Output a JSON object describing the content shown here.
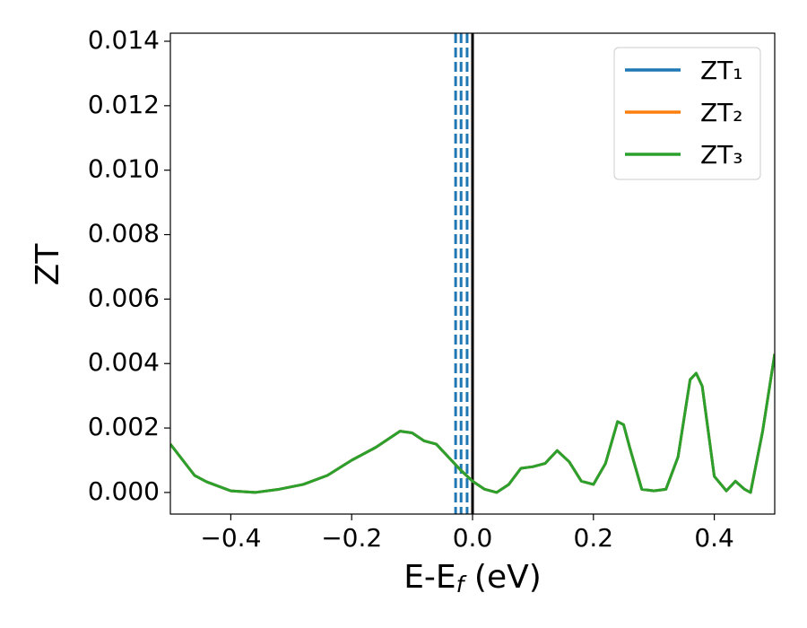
{
  "chart_data": {
    "type": "line",
    "ylabel": "ZT",
    "xlabel": [
      "E-E",
      "f",
      " (eV)"
    ],
    "x": [
      -0.5,
      -0.46,
      -0.44,
      -0.4,
      -0.36,
      -0.32,
      -0.28,
      -0.24,
      -0.2,
      -0.16,
      -0.12,
      -0.1,
      -0.08,
      -0.06,
      -0.04,
      -0.02,
      0.0,
      0.02,
      0.04,
      0.06,
      0.08,
      0.1,
      0.12,
      0.14,
      0.16,
      0.18,
      0.2,
      0.22,
      0.24,
      0.25,
      0.26,
      0.28,
      0.3,
      0.32,
      0.34,
      0.36,
      0.37,
      0.38,
      0.4,
      0.42,
      0.435,
      0.45,
      0.46,
      0.48,
      0.5
    ],
    "series": [
      {
        "name": "ZT₁",
        "color": "#1f77b4",
        "values": [
          0.0015,
          0.00053,
          0.00033,
          5e-05,
          0.0,
          0.0001,
          0.00025,
          0.00053,
          0.001,
          0.0014,
          0.0019,
          0.00185,
          0.0016,
          0.0015,
          0.0011,
          0.0007,
          0.00035,
          0.0001,
          0.0,
          0.00025,
          0.00075,
          0.0008,
          0.0009,
          0.0013,
          0.00095,
          0.00035,
          0.00025,
          0.0009,
          0.0022,
          0.0021,
          0.0014,
          0.0001,
          5e-05,
          0.0001,
          0.0011,
          0.0035,
          0.0037,
          0.0033,
          0.0005,
          5e-05,
          0.00035,
          0.0001,
          0.0,
          0.0019,
          0.0043
        ]
      },
      {
        "name": "ZT₂",
        "color": "#ff7f0e",
        "values": [
          0.0015,
          0.00053,
          0.00033,
          5e-05,
          0.0,
          0.0001,
          0.00025,
          0.00053,
          0.001,
          0.0014,
          0.0019,
          0.00185,
          0.0016,
          0.0015,
          0.0011,
          0.0007,
          0.00035,
          0.0001,
          0.0,
          0.00025,
          0.00075,
          0.0008,
          0.0009,
          0.0013,
          0.00095,
          0.00035,
          0.00025,
          0.0009,
          0.0022,
          0.0021,
          0.0014,
          0.0001,
          5e-05,
          0.0001,
          0.0011,
          0.0035,
          0.0037,
          0.0033,
          0.0005,
          5e-05,
          0.00035,
          0.0001,
          0.0,
          0.0019,
          0.0043
        ]
      },
      {
        "name": "ZT₃",
        "color": "#2ca02c",
        "values": [
          0.0015,
          0.00053,
          0.00033,
          5e-05,
          0.0,
          0.0001,
          0.00025,
          0.00053,
          0.001,
          0.0014,
          0.0019,
          0.00185,
          0.0016,
          0.0015,
          0.0011,
          0.0007,
          0.00035,
          0.0001,
          0.0,
          0.00025,
          0.00075,
          0.0008,
          0.0009,
          0.0013,
          0.00095,
          0.00035,
          0.00025,
          0.0009,
          0.0022,
          0.0021,
          0.0014,
          0.0001,
          5e-05,
          0.0001,
          0.0011,
          0.0035,
          0.0037,
          0.0033,
          0.0005,
          5e-05,
          0.00035,
          0.0001,
          0.0,
          0.0019,
          0.0043
        ]
      }
    ],
    "vlines": [
      {
        "x": -0.028,
        "color": "#1f77b4",
        "style": "dashed"
      },
      {
        "x": -0.019,
        "color": "#1f77b4",
        "style": "dashed"
      },
      {
        "x": -0.009,
        "color": "#1f77b4",
        "style": "dashed"
      },
      {
        "x": 0,
        "color": "#000000",
        "style": "solid"
      }
    ],
    "xlim": [
      -0.5,
      0.5
    ],
    "ylim": [
      -0.00067,
      0.01425
    ],
    "xticks": [
      {
        "value": -0.4,
        "label": "−0.4"
      },
      {
        "value": -0.2,
        "label": "−0.2"
      },
      {
        "value": 0,
        "label": "0.0"
      },
      {
        "value": 0.2,
        "label": "0.2"
      },
      {
        "value": 0.4,
        "label": "0.4"
      }
    ],
    "yticks": [
      {
        "value": 0,
        "label": "0.000"
      },
      {
        "value": 0.002,
        "label": "0.002"
      },
      {
        "value": 0.004,
        "label": "0.004"
      },
      {
        "value": 0.006,
        "label": "0.006"
      },
      {
        "value": 0.008,
        "label": "0.008"
      },
      {
        "value": 0.01,
        "label": "0.010"
      },
      {
        "value": 0.012,
        "label": "0.012"
      },
      {
        "value": 0.014,
        "label": "0.014"
      }
    ],
    "grid": false,
    "legend": "upper right"
  }
}
